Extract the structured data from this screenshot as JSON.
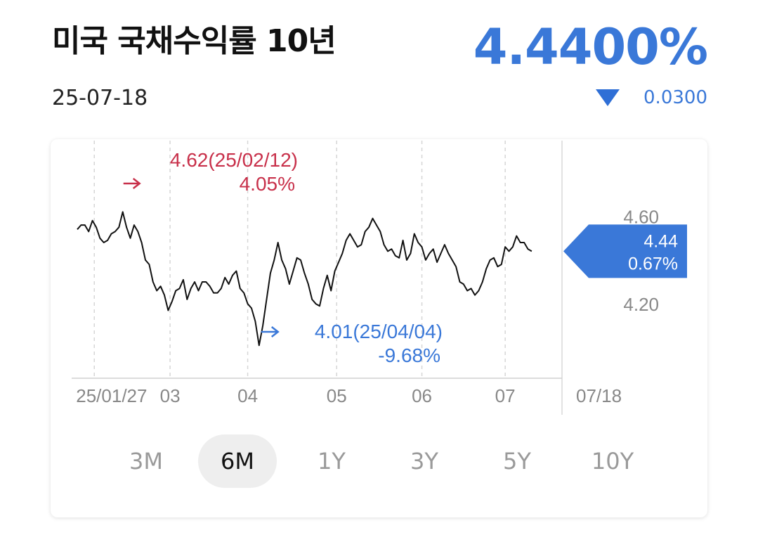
{
  "header": {
    "title": "미국 국채수익률 10년",
    "date": "25-07-18",
    "price": "4.4400%",
    "change": "0.0300",
    "change_direction": "down",
    "change_icon": "down-triangle-icon"
  },
  "colors": {
    "accent_blue": "#3a78d8",
    "high_red": "#c8304a",
    "line": "#111111"
  },
  "chart_data": {
    "type": "line",
    "ylim": [
      3.86,
      4.92
    ],
    "yticks": [
      {
        "value": 4.6,
        "label": "4.60"
      },
      {
        "value": 4.2,
        "label": "4.20"
      }
    ],
    "xticks": [
      {
        "index": 9,
        "label": "25/01/27"
      },
      {
        "index": 49,
        "label": "03"
      },
      {
        "index": 90,
        "label": "04"
      },
      {
        "index": 137,
        "label": "05"
      },
      {
        "index": 182,
        "label": "06"
      },
      {
        "index": 226,
        "label": "07"
      },
      {
        "index": 256,
        "label": "07/18"
      }
    ],
    "x_count": 257,
    "series": [
      {
        "points": [
          [
            0,
            4.54
          ],
          [
            2,
            4.56
          ],
          [
            4,
            4.56
          ],
          [
            6,
            4.53
          ],
          [
            8,
            4.58
          ],
          [
            10,
            4.55
          ],
          [
            12,
            4.5
          ],
          [
            14,
            4.48
          ],
          [
            16,
            4.49
          ],
          [
            18,
            4.52
          ],
          [
            20,
            4.53
          ],
          [
            22,
            4.55
          ],
          [
            24,
            4.62
          ],
          [
            26,
            4.55
          ],
          [
            28,
            4.5
          ],
          [
            30,
            4.56
          ],
          [
            32,
            4.53
          ],
          [
            34,
            4.48
          ],
          [
            36,
            4.4
          ],
          [
            38,
            4.38
          ],
          [
            40,
            4.3
          ],
          [
            42,
            4.26
          ],
          [
            44,
            4.28
          ],
          [
            46,
            4.24
          ],
          [
            48,
            4.17
          ],
          [
            50,
            4.21
          ],
          [
            52,
            4.26
          ],
          [
            54,
            4.27
          ],
          [
            56,
            4.31
          ],
          [
            58,
            4.22
          ],
          [
            60,
            4.27
          ],
          [
            62,
            4.3
          ],
          [
            64,
            4.26
          ],
          [
            66,
            4.3
          ],
          [
            68,
            4.3
          ],
          [
            70,
            4.28
          ],
          [
            72,
            4.25
          ],
          [
            74,
            4.25
          ],
          [
            76,
            4.27
          ],
          [
            78,
            4.32
          ],
          [
            80,
            4.29
          ],
          [
            82,
            4.33
          ],
          [
            84,
            4.35
          ],
          [
            86,
            4.27
          ],
          [
            88,
            4.25
          ],
          [
            90,
            4.2
          ],
          [
            92,
            4.18
          ],
          [
            94,
            4.12
          ],
          [
            96,
            4.01
          ],
          [
            98,
            4.1
          ],
          [
            100,
            4.22
          ],
          [
            102,
            4.34
          ],
          [
            104,
            4.4
          ],
          [
            106,
            4.48
          ],
          [
            108,
            4.4
          ],
          [
            110,
            4.36
          ],
          [
            112,
            4.29
          ],
          [
            114,
            4.35
          ],
          [
            116,
            4.41
          ],
          [
            118,
            4.4
          ],
          [
            120,
            4.34
          ],
          [
            122,
            4.29
          ],
          [
            124,
            4.22
          ],
          [
            126,
            4.2
          ],
          [
            128,
            4.19
          ],
          [
            130,
            4.27
          ],
          [
            132,
            4.33
          ],
          [
            134,
            4.26
          ],
          [
            136,
            4.35
          ],
          [
            138,
            4.39
          ],
          [
            140,
            4.43
          ],
          [
            142,
            4.49
          ],
          [
            144,
            4.52
          ],
          [
            146,
            4.49
          ],
          [
            148,
            4.46
          ],
          [
            150,
            4.47
          ],
          [
            152,
            4.53
          ],
          [
            154,
            4.55
          ],
          [
            156,
            4.59
          ],
          [
            158,
            4.56
          ],
          [
            160,
            4.53
          ],
          [
            162,
            4.47
          ],
          [
            164,
            4.44
          ],
          [
            166,
            4.45
          ],
          [
            168,
            4.42
          ],
          [
            170,
            4.41
          ],
          [
            172,
            4.49
          ],
          [
            174,
            4.4
          ],
          [
            176,
            4.43
          ],
          [
            178,
            4.52
          ],
          [
            180,
            4.48
          ],
          [
            182,
            4.46
          ],
          [
            184,
            4.4
          ],
          [
            186,
            4.43
          ],
          [
            188,
            4.45
          ],
          [
            190,
            4.39
          ],
          [
            192,
            4.43
          ],
          [
            194,
            4.47
          ],
          [
            196,
            4.43
          ],
          [
            198,
            4.4
          ],
          [
            200,
            4.37
          ],
          [
            202,
            4.3
          ],
          [
            204,
            4.29
          ],
          [
            206,
            4.26
          ],
          [
            208,
            4.27
          ],
          [
            210,
            4.24
          ],
          [
            212,
            4.26
          ],
          [
            214,
            4.3
          ],
          [
            216,
            4.36
          ],
          [
            218,
            4.4
          ],
          [
            220,
            4.41
          ],
          [
            222,
            4.37
          ],
          [
            224,
            4.38
          ],
          [
            226,
            4.46
          ],
          [
            228,
            4.44
          ],
          [
            230,
            4.46
          ],
          [
            232,
            4.51
          ],
          [
            234,
            4.48
          ],
          [
            236,
            4.48
          ],
          [
            238,
            4.45
          ],
          [
            240,
            4.44
          ]
        ]
      }
    ],
    "annotations": {
      "high": {
        "x": 24,
        "value": 4.62,
        "label": "4.62(25/02/12)",
        "pct": "4.05%",
        "arrow": "right-arrow-icon"
      },
      "low": {
        "x": 96,
        "value": 4.01,
        "label": "4.01(25/04/04)",
        "pct": "-9.68%",
        "arrow": "right-arrow-icon"
      },
      "current": {
        "value": 4.44,
        "label": "4.44",
        "pct": "0.67%"
      }
    },
    "grid": "vertical-dashed"
  },
  "periods": [
    "3M",
    "6M",
    "1Y",
    "3Y",
    "5Y",
    "10Y"
  ],
  "active_period": "6M"
}
